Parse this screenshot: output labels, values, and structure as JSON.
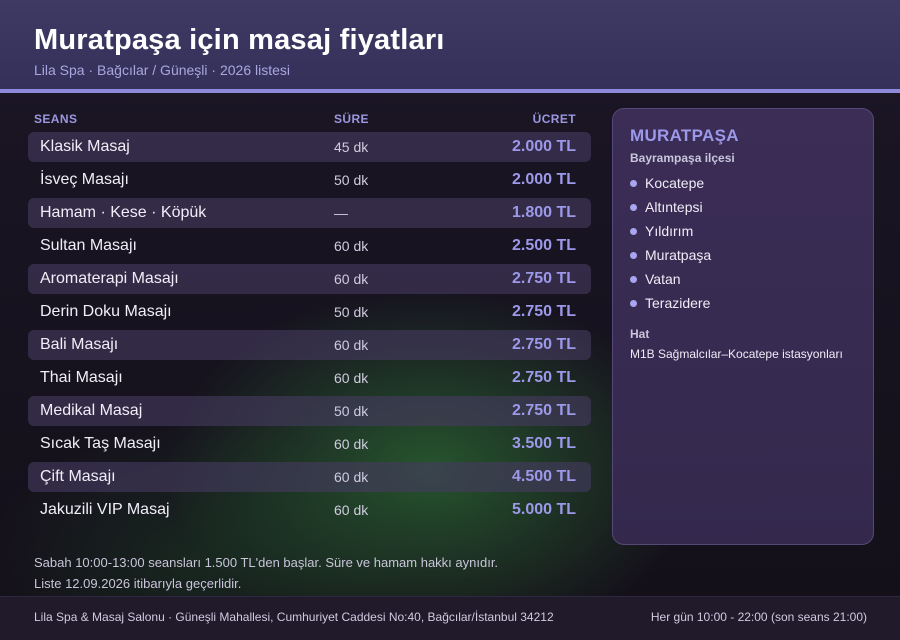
{
  "header": {
    "title": "Muratpaşa için masaj fiyatları",
    "subtitle": "Lila Spa · Bağcılar / Güneşli · 2026 listesi"
  },
  "table": {
    "columns": {
      "name": "SEANS",
      "duration": "SÜRE",
      "price": "ÜCRET"
    },
    "rows": [
      {
        "name": "Klasik Masaj",
        "duration": "45 dk",
        "price": "2.000 TL"
      },
      {
        "name": "İsveç Masajı",
        "duration": "50 dk",
        "price": "2.000 TL"
      },
      {
        "name": "Hamam · Kese · Köpük",
        "duration": "—",
        "price": "1.800 TL"
      },
      {
        "name": "Sultan Masajı",
        "duration": "60 dk",
        "price": "2.500 TL"
      },
      {
        "name": "Aromaterapi Masajı",
        "duration": "60 dk",
        "price": "2.750 TL"
      },
      {
        "name": "Derin Doku Masajı",
        "duration": "50 dk",
        "price": "2.750 TL"
      },
      {
        "name": "Bali Masajı",
        "duration": "60 dk",
        "price": "2.750 TL"
      },
      {
        "name": "Thai Masajı",
        "duration": "60 dk",
        "price": "2.750 TL"
      },
      {
        "name": "Medikal Masaj",
        "duration": "50 dk",
        "price": "2.750 TL"
      },
      {
        "name": "Sıcak Taş Masajı",
        "duration": "60 dk",
        "price": "3.500 TL"
      },
      {
        "name": "Çift Masajı",
        "duration": "60 dk",
        "price": "4.500 TL"
      },
      {
        "name": "Jakuzili VIP Masaj",
        "duration": "60 dk",
        "price": "5.000 TL"
      }
    ]
  },
  "note": {
    "line1": "Sabah 10:00-13:00 seansları 1.500 TL'den başlar. Süre ve hamam hakkı aynıdır.",
    "line2": "Liste 12.09.2026 itibarıyla geçerlidir."
  },
  "side": {
    "title": "MURATPAŞA",
    "district": "Bayrampaşa ilçesi",
    "neighborhoods": [
      "Kocatepe",
      "Altıntepsi",
      "Yıldırım",
      "Muratpaşa",
      "Vatan",
      "Terazidere"
    ],
    "line_label": "Hat",
    "line_value": "M1B Sağmalcılar–Kocatepe istasyonları"
  },
  "footer": {
    "address": "Lila Spa & Masaj Salonu · Güneşli Mahallesi, Cumhuriyet Caddesi No:40, Bağcılar/İstanbul 34212",
    "hours": "Her gün 10:00 - 22:00 (son seans 21:00)"
  },
  "colors": {
    "accent": "#9d99ea",
    "header_bg": "#3e3a64",
    "header_line": "#8e89d8",
    "row_shade": "#463a60",
    "card_bg": "#3b2d56"
  }
}
